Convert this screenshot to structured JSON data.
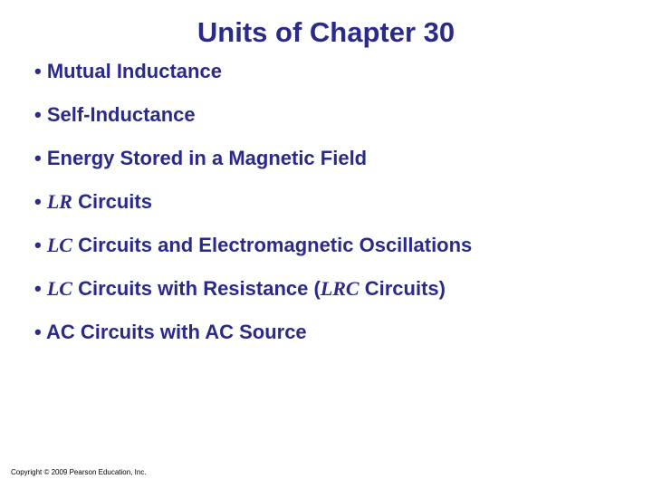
{
  "title": {
    "text": "Units of Chapter 30",
    "color": "#2a2a8a",
    "fontsize": 31
  },
  "items": [
    {
      "prefix": "• ",
      "text": "Mutual Inductance",
      "italic_prefix": ""
    },
    {
      "prefix": "• ",
      "text": "Self-Inductance",
      "italic_prefix": ""
    },
    {
      "prefix": "• ",
      "text": "Energy Stored in a Magnetic Field",
      "italic_prefix": ""
    },
    {
      "prefix": "• ",
      "text": " Circuits",
      "italic_prefix": "LR"
    },
    {
      "prefix": "• ",
      "text": " Circuits and Electromagnetic Oscillations",
      "italic_prefix": "LC"
    },
    {
      "prefix": "• ",
      "text_pre": " Circuits with Resistance (",
      "italic_prefix": "LC",
      "italic_mid": "LRC",
      "text_post": " Circuits)"
    },
    {
      "prefix": "• ",
      "text": "AC Circuits with AC Source",
      "italic_prefix": ""
    }
  ],
  "item_style": {
    "color": "#2a2a8a",
    "fontsize": 22
  },
  "copyright": {
    "text": "Copyright © 2009 Pearson Education, Inc.",
    "color": "#000000",
    "fontsize": 8
  }
}
